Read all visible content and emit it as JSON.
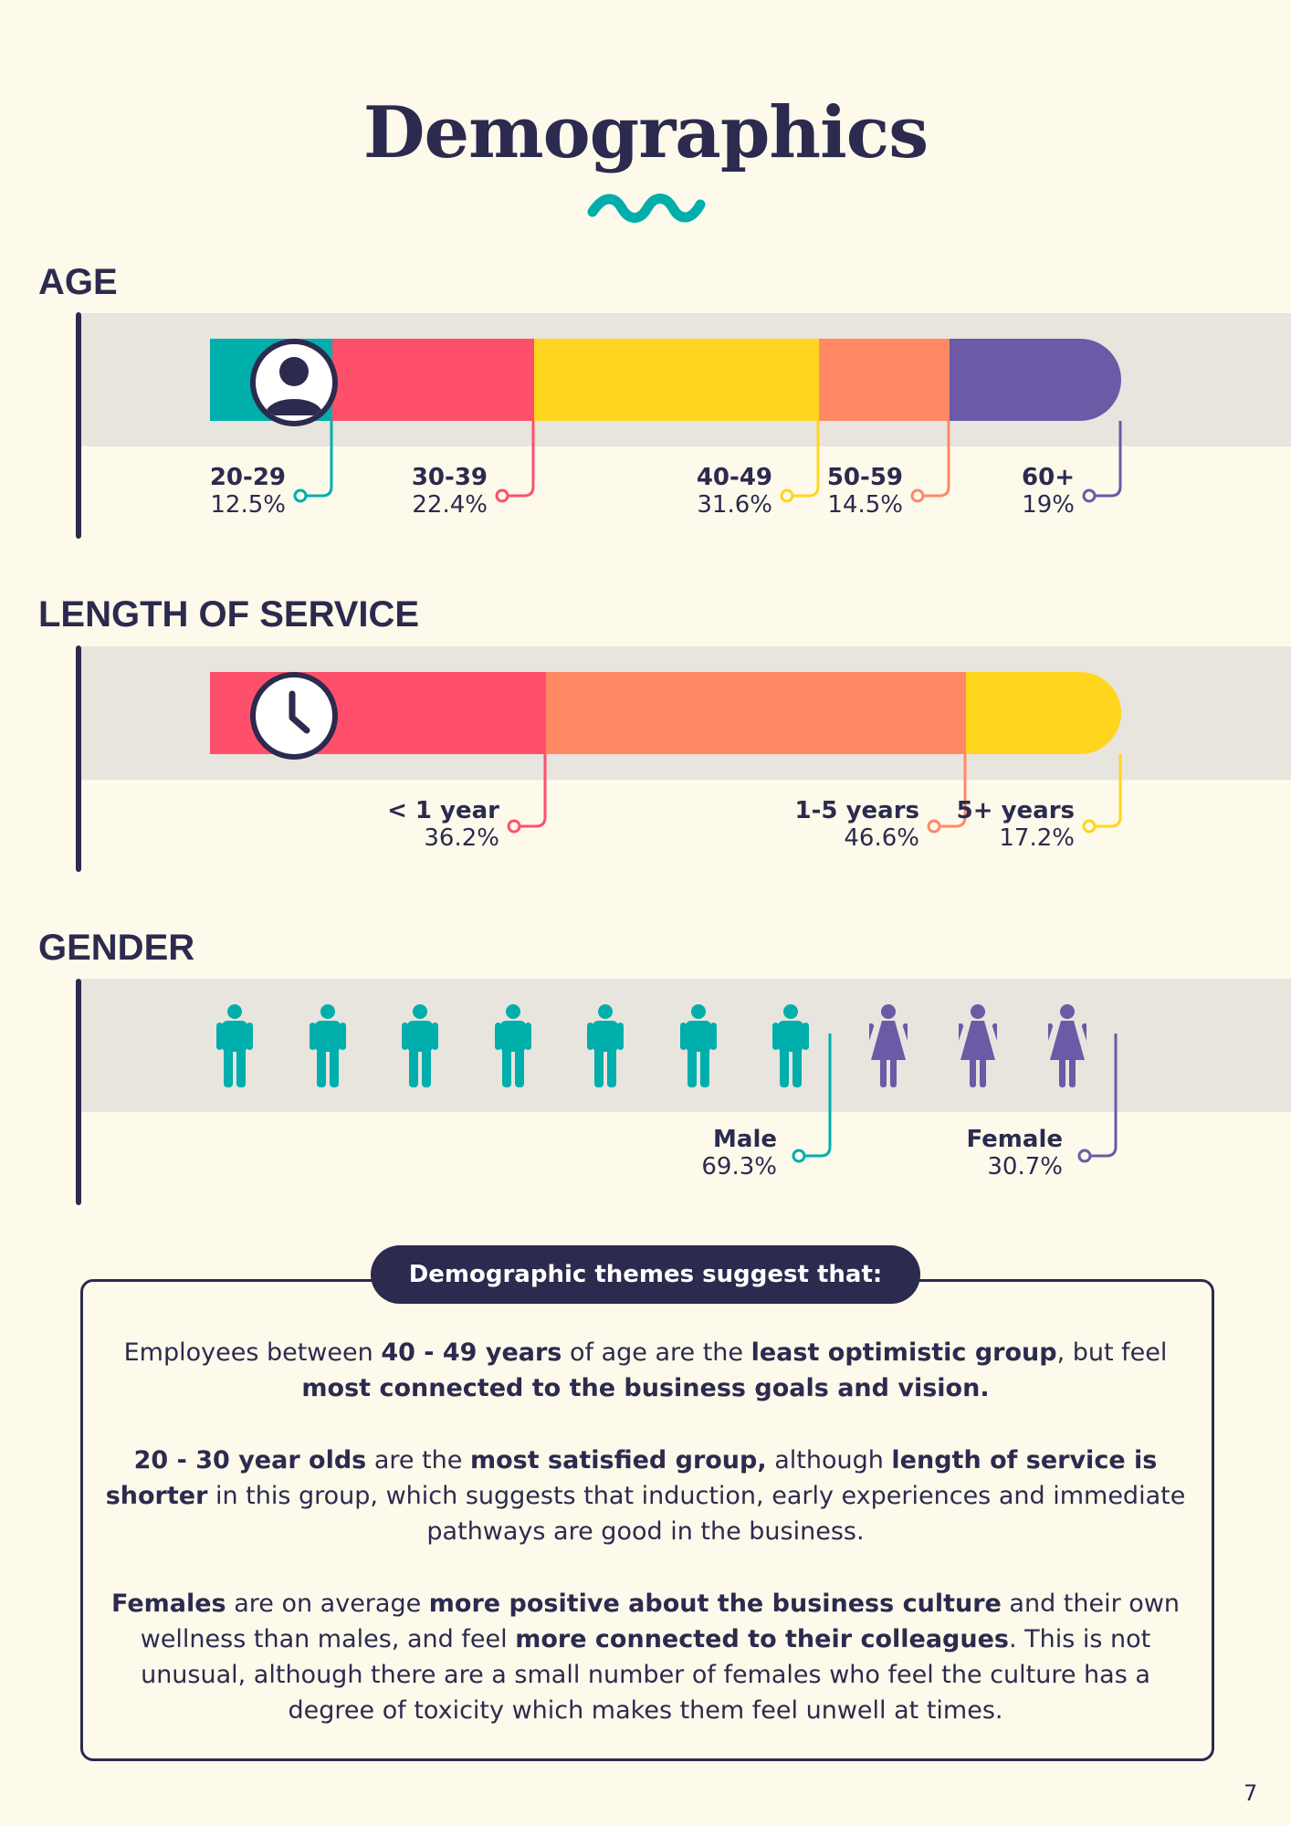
{
  "page": {
    "title": "Demographics",
    "page_number": "7"
  },
  "age": {
    "heading": "AGE",
    "icon": "user-icon",
    "segments": [
      {
        "label": "20-29",
        "value": "12.5%",
        "percent": 12.5,
        "color": "#00aeac"
      },
      {
        "label": "30-39",
        "value": "22.4%",
        "percent": 22.4,
        "color": "#ff506b"
      },
      {
        "label": "40-49",
        "value": "31.6%",
        "percent": 31.6,
        "color": "#ffd51f"
      },
      {
        "label": "50-59",
        "value": "14.5%",
        "percent": 14.5,
        "color": "#ff8965"
      },
      {
        "label": "60+",
        "value": "19%",
        "percent": 19,
        "color": "#6b5aa6"
      }
    ]
  },
  "service": {
    "heading": "LENGTH OF SERVICE",
    "icon": "clock-icon",
    "segments": [
      {
        "label": "< 1 year",
        "value": "36.2%",
        "percent": 36.2,
        "color": "#ff506b"
      },
      {
        "label": "1-5 years",
        "value": "46.6%",
        "percent": 46.6,
        "color": "#ff8965"
      },
      {
        "label": "5+ years",
        "value": "17.2%",
        "percent": 17.2,
        "color": "#ffd51f"
      }
    ]
  },
  "gender": {
    "heading": "GENDER",
    "male": {
      "label": "Male",
      "value": "69.3%",
      "icon_count": 7,
      "color": "#00aeac",
      "icon": "male-person-icon"
    },
    "female": {
      "label": "Female",
      "value": "30.7%",
      "icon_count": 3,
      "color": "#6b5aa6",
      "icon": "female-person-icon"
    }
  },
  "themes": {
    "heading": "Demographic themes suggest that:",
    "p1": [
      {
        "t": "Employees between ",
        "b": false
      },
      {
        "t": "40 - 49 years",
        "b": true
      },
      {
        "t": " of age are the ",
        "b": false
      },
      {
        "t": "least optimistic group",
        "b": true
      },
      {
        "t": ", but feel ",
        "b": false
      },
      {
        "t": "most connected to the business goals and vision.",
        "b": true
      }
    ],
    "p2": [
      {
        "t": "20 - 30 year olds",
        "b": true
      },
      {
        "t": " are the ",
        "b": false
      },
      {
        "t": "most satisfied group,",
        "b": true
      },
      {
        "t": " although ",
        "b": false
      },
      {
        "t": "length of service is shorter",
        "b": true
      },
      {
        "t": " in this group, which suggests that induction, early experiences and immediate pathways are good in the business.",
        "b": false
      }
    ],
    "p3": [
      {
        "t": "Females",
        "b": true
      },
      {
        "t": " are on average ",
        "b": false
      },
      {
        "t": "more positive about the business culture",
        "b": true
      },
      {
        "t": " and their own wellness than males, and feel ",
        "b": false
      },
      {
        "t": "more connected to their colleagues",
        "b": true
      },
      {
        "t": ". This is not unusual, although there are a small number of females who feel the culture has a degree of toxicity which makes them feel unwell at times.",
        "b": false
      }
    ]
  }
}
